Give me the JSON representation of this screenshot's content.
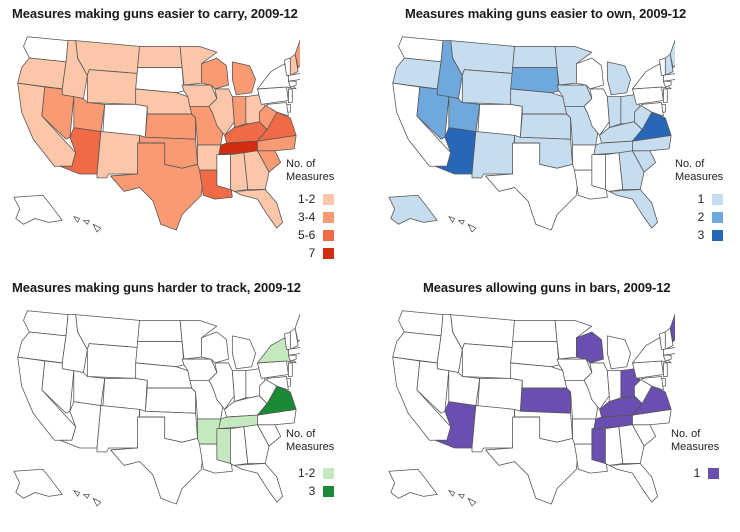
{
  "style": {
    "stroke": "#555555",
    "base_fill": "#ffffff"
  },
  "maps": [
    {
      "id": "carry",
      "title": "Measures making guns easier to carry, 2009-12",
      "legend_title_line1": "No. of",
      "legend_title_line2": "Measures",
      "legend": [
        {
          "label": "1-2",
          "color": "#fcc6a8"
        },
        {
          "label": "3-4",
          "color": "#f99a72"
        },
        {
          "label": "5-6",
          "color": "#f06a45"
        },
        {
          "label": "7",
          "color": "#d42c10"
        }
      ],
      "states": {
        "WA": 0,
        "OR": 1,
        "CA": 1,
        "ID": 1,
        "NV": 2,
        "AZ": 3,
        "UT": 2,
        "MT": 1,
        "WY": 1,
        "CO": 0,
        "NM": 1,
        "ND": 1,
        "SD": 0,
        "NE": 1,
        "KS": 2,
        "OK": 2,
        "TX": 2,
        "MN": 1,
        "IA": 1,
        "MO": 2,
        "AR": 1,
        "LA": 3,
        "WI": 2,
        "IL": 1,
        "MI": 2,
        "IN": 2,
        "OH": 1,
        "KY": 3,
        "TN": 4,
        "MS": 0,
        "AL": 1,
        "GA": 1,
        "FL": 1,
        "SC": 2,
        "NC": 2,
        "VA": 3,
        "WV": 2,
        "PA": 0,
        "NY": 0,
        "VT": 0,
        "NH": 1,
        "ME": 2,
        "MA": 0,
        "CT": 0,
        "NJ": 0,
        "DE": 0,
        "MD": 0,
        "AK": 0,
        "HI": 0
      }
    },
    {
      "id": "own",
      "title": "Measures making guns easier to own, 2009-12",
      "legend_title_line1": "No. of",
      "legend_title_line2": "Measures",
      "legend": [
        {
          "label": "1",
          "color": "#c6dcef"
        },
        {
          "label": "2",
          "color": "#6fa8dc"
        },
        {
          "label": "3",
          "color": "#2767b8"
        }
      ],
      "states": {
        "WA": 0,
        "OR": 1,
        "CA": 0,
        "ID": 2,
        "NV": 2,
        "AZ": 3,
        "UT": 2,
        "MT": 1,
        "WY": 1,
        "CO": 0,
        "NM": 1,
        "ND": 1,
        "SD": 2,
        "NE": 1,
        "KS": 1,
        "OK": 1,
        "TX": 0,
        "MN": 1,
        "IA": 1,
        "MO": 1,
        "AR": 0,
        "LA": 0,
        "WI": 0,
        "IL": 0,
        "MI": 1,
        "IN": 1,
        "OH": 1,
        "KY": 1,
        "TN": 1,
        "MS": 0,
        "AL": 0,
        "GA": 1,
        "FL": 1,
        "SC": 1,
        "NC": 1,
        "VA": 3,
        "WV": 1,
        "PA": 0,
        "NY": 0,
        "VT": 0,
        "NH": 1,
        "ME": 1,
        "MA": 0,
        "CT": 0,
        "NJ": 0,
        "DE": 0,
        "MD": 0,
        "AK": 1,
        "HI": 0
      }
    },
    {
      "id": "track",
      "title": "Measures making guns harder to track, 2009-12",
      "legend_title_line1": "No. of",
      "legend_title_line2": "Measures",
      "legend": [
        {
          "label": "1-2",
          "color": "#c6e8bf"
        },
        {
          "label": "3",
          "color": "#1a8a35"
        }
      ],
      "states": {
        "WA": 0,
        "OR": 0,
        "CA": 0,
        "ID": 0,
        "NV": 0,
        "AZ": 0,
        "UT": 0,
        "MT": 0,
        "WY": 0,
        "CO": 0,
        "NM": 0,
        "ND": 0,
        "SD": 0,
        "NE": 0,
        "KS": 0,
        "OK": 0,
        "TX": 0,
        "MN": 0,
        "IA": 0,
        "MO": 0,
        "AR": 1,
        "LA": 0,
        "WI": 0,
        "IL": 0,
        "MI": 0,
        "IN": 0,
        "OH": 0,
        "KY": 0,
        "TN": 1,
        "MS": 1,
        "AL": 0,
        "GA": 0,
        "FL": 0,
        "SC": 0,
        "NC": 0,
        "VA": 2,
        "WV": 0,
        "PA": 0,
        "NY": 1,
        "VT": 0,
        "NH": 0,
        "ME": 0,
        "MA": 0,
        "CT": 0,
        "NJ": 0,
        "DE": 0,
        "MD": 0,
        "AK": 0,
        "HI": 0
      }
    },
    {
      "id": "bars",
      "title": "Measures allowing guns in bars, 2009-12",
      "legend_title_line1": "No. of",
      "legend_title_line2": "Measures",
      "legend": [
        {
          "label": "1",
          "color": "#6a4fb0"
        }
      ],
      "states": {
        "WA": 0,
        "OR": 0,
        "CA": 0,
        "ID": 0,
        "NV": 0,
        "AZ": 1,
        "UT": 0,
        "MT": 0,
        "WY": 0,
        "CO": 0,
        "NM": 0,
        "ND": 0,
        "SD": 0,
        "NE": 0,
        "KS": 1,
        "OK": 0,
        "TX": 0,
        "MN": 0,
        "IA": 0,
        "MO": 0,
        "AR": 0,
        "LA": 0,
        "WI": 1,
        "IL": 0,
        "MI": 0,
        "IN": 0,
        "OH": 1,
        "KY": 1,
        "TN": 1,
        "MS": 1,
        "AL": 0,
        "GA": 0,
        "FL": 0,
        "SC": 0,
        "NC": 0,
        "VA": 1,
        "WV": 0,
        "PA": 0,
        "NY": 0,
        "VT": 0,
        "NH": 0,
        "ME": 1,
        "MA": 0,
        "CT": 0,
        "NJ": 0,
        "DE": 0,
        "MD": 0,
        "AK": 0,
        "HI": 0
      }
    }
  ]
}
